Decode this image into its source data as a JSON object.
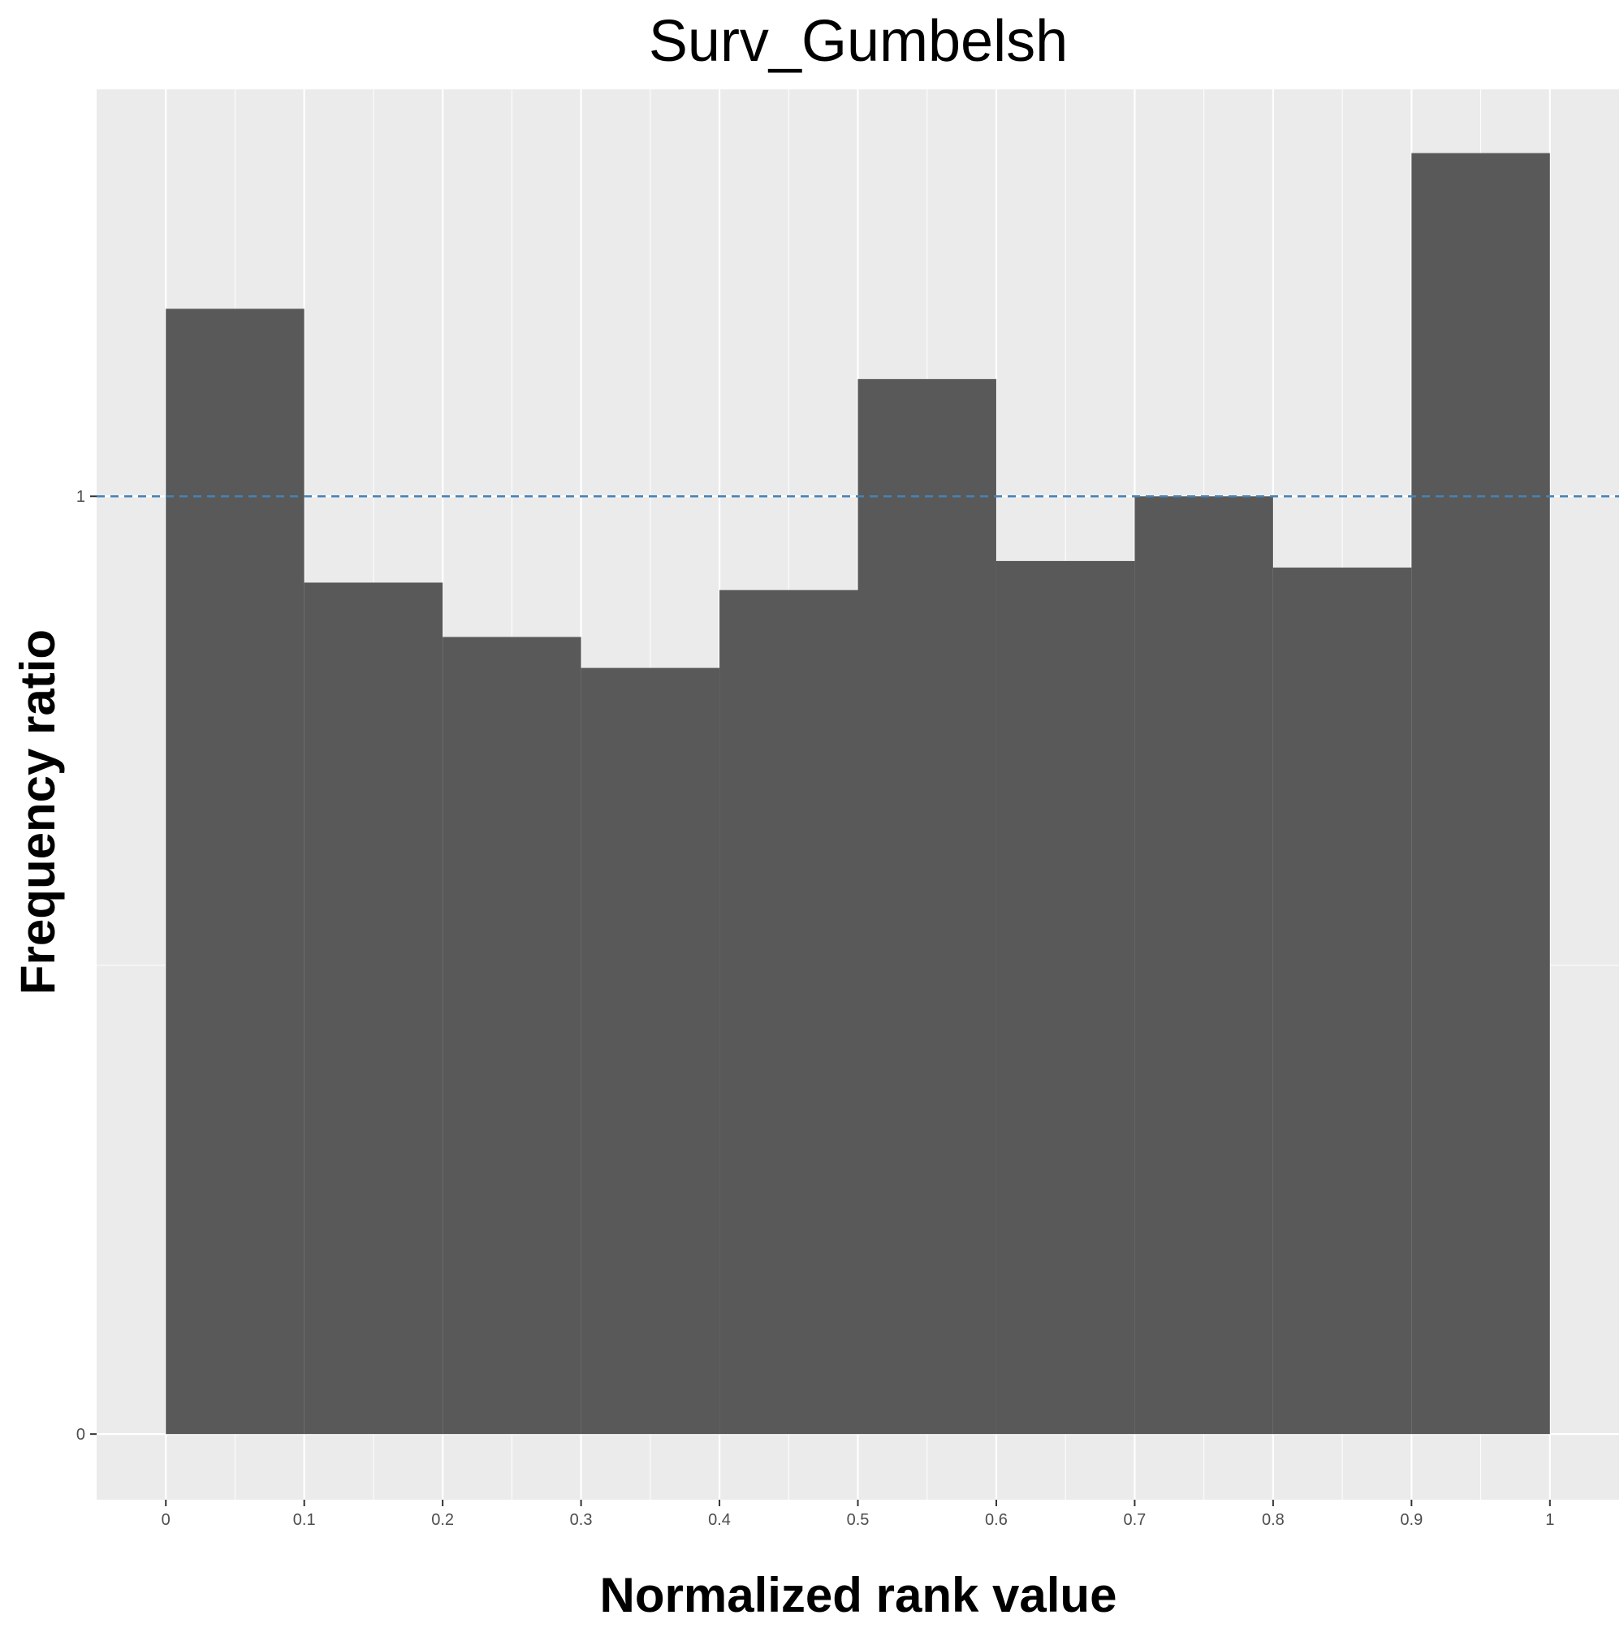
{
  "chart_data": {
    "type": "bar",
    "title": "Surv_Gumbelsh",
    "xlabel": "Normalized rank value",
    "ylabel": "Frequency ratio",
    "bin_edges": [
      0,
      0.1,
      0.2,
      0.3,
      0.4,
      0.5,
      0.6,
      0.7,
      0.8,
      0.9,
      1
    ],
    "values": [
      1.2,
      0.908,
      0.85,
      0.817,
      0.9,
      1.125,
      0.931,
      1.0,
      0.924,
      1.366
    ],
    "x_ticks": [
      "0",
      "0.1",
      "0.2",
      "0.3",
      "0.4",
      "0.5",
      "0.6",
      "0.7",
      "0.8",
      "0.9",
      "1"
    ],
    "y_ticks": [
      "0",
      "1"
    ],
    "y_tick_values": [
      0,
      1
    ],
    "reference_line": {
      "y": 1,
      "style": "dashed",
      "color": "#4682b4"
    },
    "xlim": [
      -0.05,
      1.05
    ],
    "ylim": [
      -0.07,
      1.434
    ],
    "grid": true,
    "bar_color": "#595959",
    "panel_color": "#ebebeb",
    "grid_color": "#ffffff"
  }
}
